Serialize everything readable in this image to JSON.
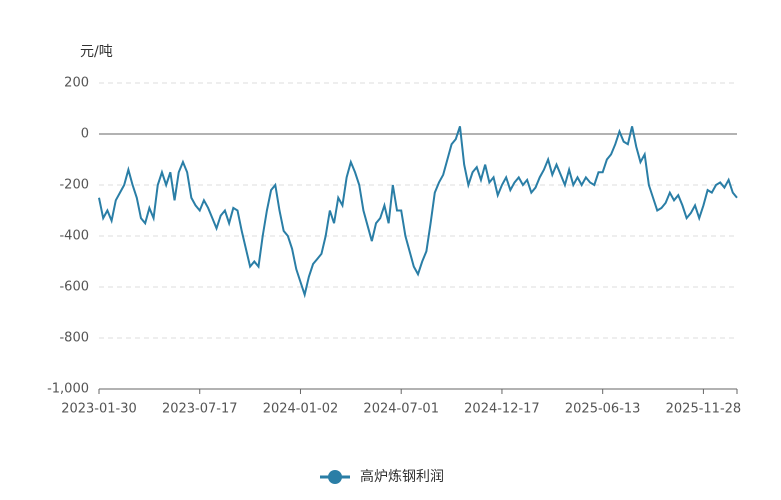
{
  "chart_data": {
    "type": "line",
    "y_label": "元/吨",
    "categories": [
      "2023-01-30",
      null,
      null,
      null,
      null,
      null,
      null,
      null,
      null,
      null,
      null,
      null,
      null,
      null,
      null,
      null,
      null,
      null,
      null,
      null,
      null,
      null,
      null,
      null,
      "2023-07-17",
      null,
      null,
      null,
      null,
      null,
      null,
      null,
      null,
      null,
      null,
      null,
      null,
      null,
      null,
      null,
      null,
      null,
      null,
      null,
      null,
      null,
      null,
      null,
      "2024-01-02",
      null,
      null,
      null,
      null,
      null,
      null,
      null,
      null,
      null,
      null,
      null,
      null,
      null,
      null,
      null,
      null,
      null,
      null,
      null,
      null,
      null,
      null,
      null,
      "2024-07-01",
      null,
      null,
      null,
      null,
      null,
      null,
      null,
      null,
      null,
      null,
      null,
      null,
      null,
      null,
      null,
      null,
      null,
      null,
      null,
      null,
      null,
      null,
      null,
      "2024-12-17",
      null,
      null,
      null,
      null,
      null,
      null,
      null,
      null,
      null,
      null,
      null,
      null,
      null,
      null,
      null,
      null,
      null,
      null,
      null,
      null,
      null,
      null,
      null,
      "2025-06-13",
      null,
      null,
      null,
      null,
      null,
      null,
      null,
      null,
      null,
      null,
      null,
      null,
      null,
      null,
      null,
      null,
      null,
      null,
      null,
      null,
      null,
      null,
      null,
      "2025-11-28",
      null,
      null,
      null,
      null,
      null,
      null,
      null,
      null
    ],
    "series": [
      {
        "name": "高炉炼钢利润",
        "color": "#2a7ea6",
        "values": [
          -250,
          -330,
          -300,
          -340,
          -260,
          -230,
          -200,
          -140,
          -200,
          -250,
          -330,
          -350,
          -290,
          -330,
          -200,
          -150,
          -200,
          -150,
          -260,
          -150,
          -110,
          -150,
          -250,
          -280,
          -300,
          -260,
          -290,
          -330,
          -370,
          -320,
          -300,
          -350,
          -290,
          -300,
          -380,
          -450,
          -520,
          -500,
          -520,
          -400,
          -300,
          -220,
          -200,
          -300,
          -380,
          -400,
          -450,
          -530,
          -580,
          -630,
          -560,
          -510,
          -490,
          -470,
          -400,
          -300,
          -350,
          -250,
          -280,
          -170,
          -110,
          -150,
          -200,
          -300,
          -360,
          -420,
          -350,
          -330,
          -280,
          -350,
          -200,
          -300,
          -300,
          -400,
          -460,
          -520,
          -550,
          -500,
          -460,
          -350,
          -230,
          -190,
          -160,
          -100,
          -40,
          -20,
          30,
          -120,
          -200,
          -150,
          -130,
          -180,
          -120,
          -190,
          -170,
          -240,
          -200,
          -170,
          -220,
          -190,
          -170,
          -200,
          -180,
          -230,
          -210,
          -170,
          -140,
          -100,
          -160,
          -120,
          -160,
          -200,
          -140,
          -200,
          -170,
          -200,
          -170,
          -190,
          -200,
          -150,
          -150,
          -100,
          -80,
          -40,
          10,
          -30,
          -40,
          30,
          -50,
          -110,
          -80,
          -200,
          -250,
          -300,
          -290,
          -270,
          -230,
          -260,
          -240,
          -280,
          -330,
          -310,
          -280,
          -330,
          -280,
          -220,
          -230,
          -200,
          -190,
          -210,
          -180,
          -230,
          -250
        ]
      }
    ],
    "ylim": [
      -1000,
      200
    ],
    "yticks": [
      {
        "value": -1000,
        "label": "-1,000"
      },
      -800,
      -600,
      -400,
      -200,
      0,
      200
    ],
    "grid": true,
    "legend": "bottom"
  }
}
